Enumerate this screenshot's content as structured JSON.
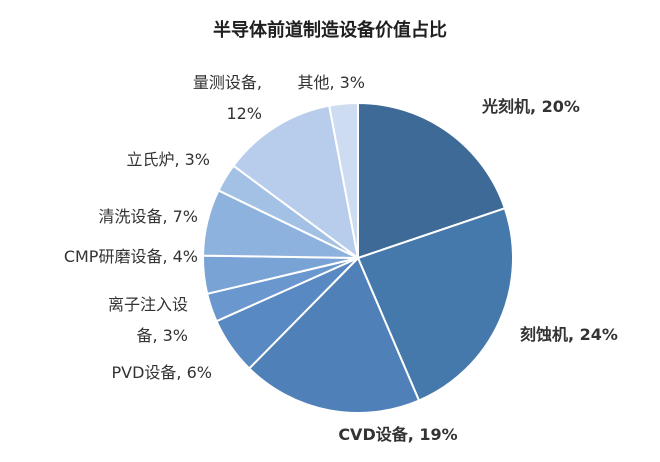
{
  "chart_data": {
    "type": "pie",
    "title": "半导体前道制造设备价值占比",
    "unit": "%",
    "slices": [
      {
        "name": "光刻机",
        "value": 20,
        "color": "#3d6a96",
        "label_lines": [
          "光刻机, 20%"
        ],
        "bold": true
      },
      {
        "name": "刻蚀机",
        "value": 24,
        "color": "#4679ab",
        "label_lines": [
          "刻蚀机, 24%"
        ],
        "bold": true
      },
      {
        "name": "CVD设备",
        "value": 19,
        "color": "#4f80b7",
        "label_lines": [
          "CVD设备, 19%"
        ],
        "bold": true
      },
      {
        "name": "PVD设备",
        "value": 6,
        "color": "#5889c2",
        "label_lines": [
          "PVD设备, 6%"
        ],
        "bold": false
      },
      {
        "name": "离子注入设备",
        "value": 3,
        "color": "#6a97cd",
        "label_lines": [
          "离子注入设",
          "备, 3%"
        ],
        "bold": false
      },
      {
        "name": "CMP研磨设备",
        "value": 4,
        "color": "#79a3d4",
        "label_lines": [
          "CMP研磨设备, 4%"
        ],
        "bold": false
      },
      {
        "name": "清洗设备",
        "value": 7,
        "color": "#8eb2de",
        "label_lines": [
          "清洗设备, 7%"
        ],
        "bold": false
      },
      {
        "name": "立氏炉",
        "value": 3,
        "color": "#a3c0e5",
        "label_lines": [
          "立氏炉, 3%"
        ],
        "bold": false
      },
      {
        "name": "量测设备",
        "value": 12,
        "color": "#b7cdeb",
        "label_lines": [
          "量测设备,",
          "12%"
        ],
        "bold": false
      },
      {
        "name": "其他",
        "value": 3,
        "color": "#cddcf0",
        "label_lines": [
          "其他, 3%"
        ],
        "bold": false
      }
    ]
  }
}
